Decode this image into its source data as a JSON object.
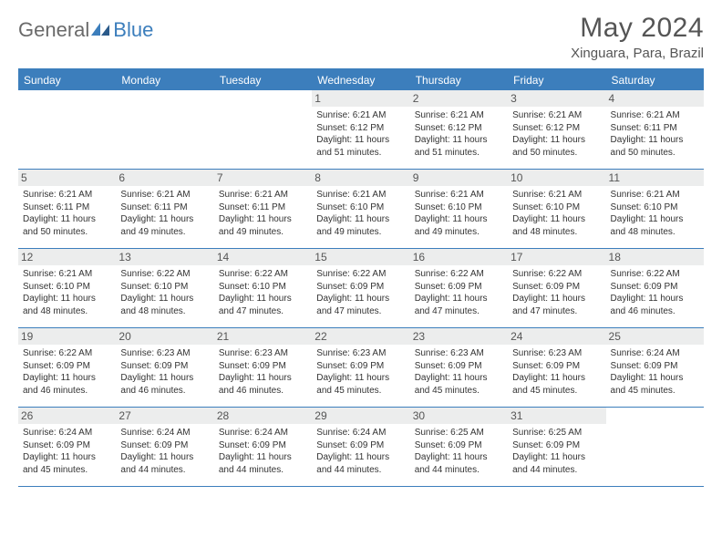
{
  "logo": {
    "text1": "General",
    "text2": "Blue"
  },
  "header": {
    "month_title": "May 2024",
    "location": "Xinguara, Para, Brazil"
  },
  "colors": {
    "accent": "#3c7ebc",
    "header_text": "#ffffff",
    "body_text": "#333333",
    "daynum_bg": "#eceded",
    "logo_gray": "#6a6a6a"
  },
  "day_headers": [
    "Sunday",
    "Monday",
    "Tuesday",
    "Wednesday",
    "Thursday",
    "Friday",
    "Saturday"
  ],
  "weeks": [
    [
      {
        "empty": true
      },
      {
        "empty": true
      },
      {
        "empty": true
      },
      {
        "num": "1",
        "sunrise": "Sunrise: 6:21 AM",
        "sunset": "Sunset: 6:12 PM",
        "daylight": "Daylight: 11 hours and 51 minutes."
      },
      {
        "num": "2",
        "sunrise": "Sunrise: 6:21 AM",
        "sunset": "Sunset: 6:12 PM",
        "daylight": "Daylight: 11 hours and 51 minutes."
      },
      {
        "num": "3",
        "sunrise": "Sunrise: 6:21 AM",
        "sunset": "Sunset: 6:12 PM",
        "daylight": "Daylight: 11 hours and 50 minutes."
      },
      {
        "num": "4",
        "sunrise": "Sunrise: 6:21 AM",
        "sunset": "Sunset: 6:11 PM",
        "daylight": "Daylight: 11 hours and 50 minutes."
      }
    ],
    [
      {
        "num": "5",
        "sunrise": "Sunrise: 6:21 AM",
        "sunset": "Sunset: 6:11 PM",
        "daylight": "Daylight: 11 hours and 50 minutes."
      },
      {
        "num": "6",
        "sunrise": "Sunrise: 6:21 AM",
        "sunset": "Sunset: 6:11 PM",
        "daylight": "Daylight: 11 hours and 49 minutes."
      },
      {
        "num": "7",
        "sunrise": "Sunrise: 6:21 AM",
        "sunset": "Sunset: 6:11 PM",
        "daylight": "Daylight: 11 hours and 49 minutes."
      },
      {
        "num": "8",
        "sunrise": "Sunrise: 6:21 AM",
        "sunset": "Sunset: 6:10 PM",
        "daylight": "Daylight: 11 hours and 49 minutes."
      },
      {
        "num": "9",
        "sunrise": "Sunrise: 6:21 AM",
        "sunset": "Sunset: 6:10 PM",
        "daylight": "Daylight: 11 hours and 49 minutes."
      },
      {
        "num": "10",
        "sunrise": "Sunrise: 6:21 AM",
        "sunset": "Sunset: 6:10 PM",
        "daylight": "Daylight: 11 hours and 48 minutes."
      },
      {
        "num": "11",
        "sunrise": "Sunrise: 6:21 AM",
        "sunset": "Sunset: 6:10 PM",
        "daylight": "Daylight: 11 hours and 48 minutes."
      }
    ],
    [
      {
        "num": "12",
        "sunrise": "Sunrise: 6:21 AM",
        "sunset": "Sunset: 6:10 PM",
        "daylight": "Daylight: 11 hours and 48 minutes."
      },
      {
        "num": "13",
        "sunrise": "Sunrise: 6:22 AM",
        "sunset": "Sunset: 6:10 PM",
        "daylight": "Daylight: 11 hours and 48 minutes."
      },
      {
        "num": "14",
        "sunrise": "Sunrise: 6:22 AM",
        "sunset": "Sunset: 6:10 PM",
        "daylight": "Daylight: 11 hours and 47 minutes."
      },
      {
        "num": "15",
        "sunrise": "Sunrise: 6:22 AM",
        "sunset": "Sunset: 6:09 PM",
        "daylight": "Daylight: 11 hours and 47 minutes."
      },
      {
        "num": "16",
        "sunrise": "Sunrise: 6:22 AM",
        "sunset": "Sunset: 6:09 PM",
        "daylight": "Daylight: 11 hours and 47 minutes."
      },
      {
        "num": "17",
        "sunrise": "Sunrise: 6:22 AM",
        "sunset": "Sunset: 6:09 PM",
        "daylight": "Daylight: 11 hours and 47 minutes."
      },
      {
        "num": "18",
        "sunrise": "Sunrise: 6:22 AM",
        "sunset": "Sunset: 6:09 PM",
        "daylight": "Daylight: 11 hours and 46 minutes."
      }
    ],
    [
      {
        "num": "19",
        "sunrise": "Sunrise: 6:22 AM",
        "sunset": "Sunset: 6:09 PM",
        "daylight": "Daylight: 11 hours and 46 minutes."
      },
      {
        "num": "20",
        "sunrise": "Sunrise: 6:23 AM",
        "sunset": "Sunset: 6:09 PM",
        "daylight": "Daylight: 11 hours and 46 minutes."
      },
      {
        "num": "21",
        "sunrise": "Sunrise: 6:23 AM",
        "sunset": "Sunset: 6:09 PM",
        "daylight": "Daylight: 11 hours and 46 minutes."
      },
      {
        "num": "22",
        "sunrise": "Sunrise: 6:23 AM",
        "sunset": "Sunset: 6:09 PM",
        "daylight": "Daylight: 11 hours and 45 minutes."
      },
      {
        "num": "23",
        "sunrise": "Sunrise: 6:23 AM",
        "sunset": "Sunset: 6:09 PM",
        "daylight": "Daylight: 11 hours and 45 minutes."
      },
      {
        "num": "24",
        "sunrise": "Sunrise: 6:23 AM",
        "sunset": "Sunset: 6:09 PM",
        "daylight": "Daylight: 11 hours and 45 minutes."
      },
      {
        "num": "25",
        "sunrise": "Sunrise: 6:24 AM",
        "sunset": "Sunset: 6:09 PM",
        "daylight": "Daylight: 11 hours and 45 minutes."
      }
    ],
    [
      {
        "num": "26",
        "sunrise": "Sunrise: 6:24 AM",
        "sunset": "Sunset: 6:09 PM",
        "daylight": "Daylight: 11 hours and 45 minutes."
      },
      {
        "num": "27",
        "sunrise": "Sunrise: 6:24 AM",
        "sunset": "Sunset: 6:09 PM",
        "daylight": "Daylight: 11 hours and 44 minutes."
      },
      {
        "num": "28",
        "sunrise": "Sunrise: 6:24 AM",
        "sunset": "Sunset: 6:09 PM",
        "daylight": "Daylight: 11 hours and 44 minutes."
      },
      {
        "num": "29",
        "sunrise": "Sunrise: 6:24 AM",
        "sunset": "Sunset: 6:09 PM",
        "daylight": "Daylight: 11 hours and 44 minutes."
      },
      {
        "num": "30",
        "sunrise": "Sunrise: 6:25 AM",
        "sunset": "Sunset: 6:09 PM",
        "daylight": "Daylight: 11 hours and 44 minutes."
      },
      {
        "num": "31",
        "sunrise": "Sunrise: 6:25 AM",
        "sunset": "Sunset: 6:09 PM",
        "daylight": "Daylight: 11 hours and 44 minutes."
      },
      {
        "empty": true
      }
    ]
  ]
}
